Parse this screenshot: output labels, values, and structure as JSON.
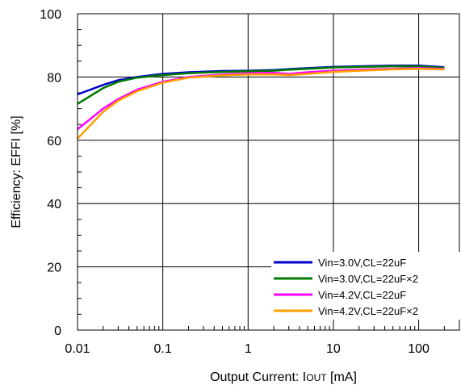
{
  "chart_data": {
    "type": "line",
    "xlabel": "Output Current: I",
    "xlabel_sub": "OUT",
    "xlabel_unit": " [mA]",
    "ylabel": "Efficiency: EFFI [%]",
    "x_scale": "log",
    "xlim": [
      0.01,
      300
    ],
    "ylim": [
      0,
      100
    ],
    "x_ticks": [
      {
        "value": 0.01,
        "label": "0.01"
      },
      {
        "value": 0.1,
        "label": "0.1"
      },
      {
        "value": 1,
        "label": "1"
      },
      {
        "value": 10,
        "label": "10"
      },
      {
        "value": 100,
        "label": "100"
      }
    ],
    "y_ticks": [
      {
        "value": 0,
        "label": "0"
      },
      {
        "value": 20,
        "label": "20"
      },
      {
        "value": 40,
        "label": "40"
      },
      {
        "value": 60,
        "label": "60"
      },
      {
        "value": 80,
        "label": "80"
      },
      {
        "value": 100,
        "label": "100"
      }
    ],
    "grid": true,
    "legend_position": "bottom-right",
    "series": [
      {
        "name": "Vin=3.0V,CL=22uF",
        "color": "#0000cc",
        "x": [
          0.01,
          0.02,
          0.03,
          0.05,
          0.1,
          0.2,
          0.5,
          1,
          2,
          3,
          5,
          10,
          20,
          50,
          100,
          200
        ],
        "y": [
          74.5,
          77.5,
          79.0,
          80.0,
          81.0,
          81.5,
          81.9,
          82.0,
          82.2,
          82.5,
          82.8,
          83.2,
          83.4,
          83.6,
          83.6,
          83.1
        ]
      },
      {
        "name": "Vin=3.0V,CL=22uF×2",
        "color": "#007a00",
        "x": [
          0.01,
          0.02,
          0.03,
          0.05,
          0.1,
          0.2,
          0.5,
          1,
          2,
          3,
          5,
          10,
          20,
          50,
          100,
          200
        ],
        "y": [
          71.5,
          76.5,
          78.5,
          79.8,
          80.6,
          81.2,
          81.6,
          81.8,
          82.0,
          82.3,
          82.6,
          83.0,
          83.2,
          83.4,
          83.4,
          82.9
        ]
      },
      {
        "name": "Vin=4.2V,CL=22uF",
        "color": "#ff00ff",
        "x": [
          0.01,
          0.02,
          0.03,
          0.05,
          0.1,
          0.2,
          0.5,
          1,
          2,
          3,
          5,
          10,
          20,
          50,
          100,
          200
        ],
        "y": [
          63.5,
          70.0,
          73.0,
          76.0,
          78.5,
          80.0,
          80.8,
          81.2,
          81.3,
          81.0,
          81.5,
          82.0,
          82.3,
          82.6,
          82.8,
          82.6
        ]
      },
      {
        "name": "Vin=4.2V,CL=22uF×2",
        "color": "#ffa000",
        "x": [
          0.01,
          0.02,
          0.03,
          0.05,
          0.1,
          0.2,
          0.5,
          1,
          2,
          3,
          5,
          10,
          20,
          50,
          100,
          200
        ],
        "y": [
          60.5,
          69.0,
          72.5,
          75.5,
          78.2,
          79.8,
          80.5,
          80.8,
          80.8,
          80.6,
          81.0,
          81.6,
          82.0,
          82.4,
          82.6,
          82.4
        ]
      }
    ]
  }
}
